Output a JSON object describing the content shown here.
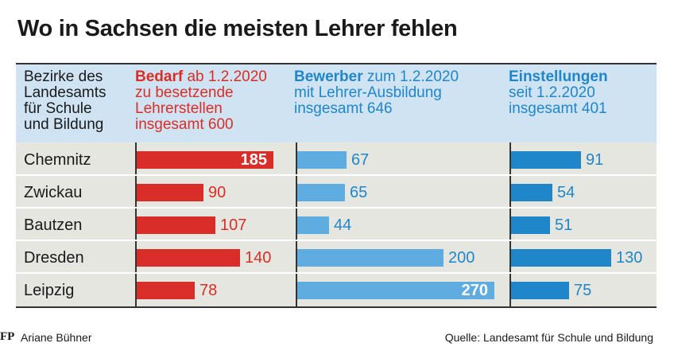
{
  "title": "Wo in Sachsen die meisten Lehrer fehlen",
  "header": {
    "region_label": [
      "Bezirke des",
      "Landesamts",
      "für Schule",
      "und Bildung"
    ],
    "bedarf": {
      "bold": "Bedarf",
      "rest": " ab 1.2.2020",
      "lines": [
        "zu besetzende",
        "Lehrerstellen",
        "insgesamt 600"
      ]
    },
    "bewerber": {
      "bold": "Bewerber",
      "rest": " zum 1.2.2020",
      "lines": [
        "mit Lehrer-Ausbildung",
        "insgesamt 646"
      ]
    },
    "einstellungen": {
      "bold": "Einstellungen",
      "rest": "",
      "lines": [
        "seit 1.2.2020",
        "insgesamt 401"
      ]
    }
  },
  "colors": {
    "bedarf": "#d92e27",
    "bewerber": "#5eace0",
    "einstellungen": "#1f87c9",
    "header_bg": "#cfe3f3",
    "row_bg": "#e6e6e0"
  },
  "chart_data": {
    "type": "bar",
    "categories": [
      "Chemnitz",
      "Zwickau",
      "Bautzen",
      "Dresden",
      "Leipzig"
    ],
    "series": [
      {
        "name": "Bedarf",
        "values": [
          185,
          90,
          107,
          140,
          78
        ]
      },
      {
        "name": "Bewerber",
        "values": [
          67,
          65,
          44,
          200,
          270
        ]
      },
      {
        "name": "Einstellungen",
        "values": [
          91,
          54,
          51,
          130,
          75
        ]
      }
    ]
  },
  "footer": {
    "logo": "FP",
    "author": "Ariane Bühner",
    "source": "Quelle: Landesamt für Schule und Bildung"
  }
}
